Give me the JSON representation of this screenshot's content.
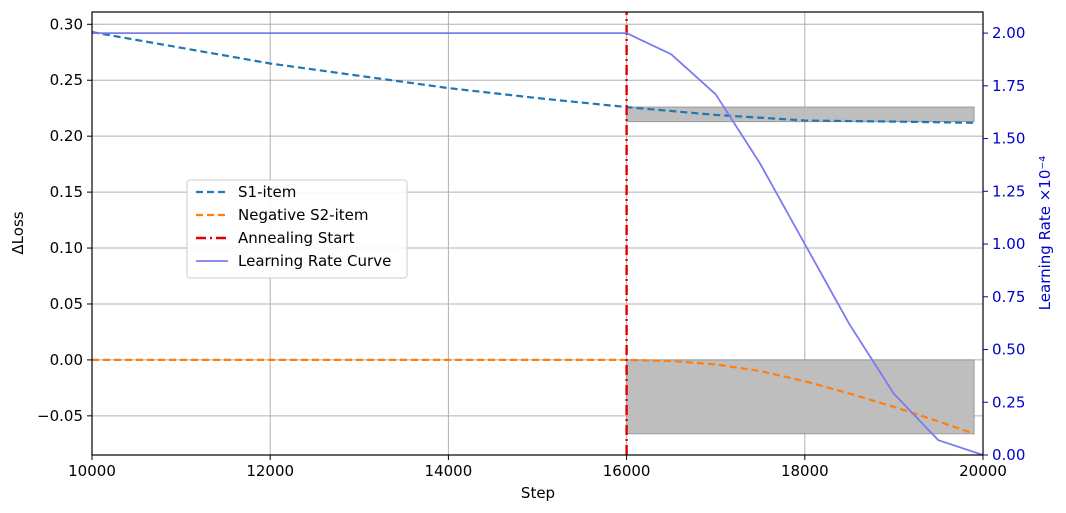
{
  "chart_data": {
    "type": "line",
    "xlabel": "Step",
    "ylabel": "ΔLoss",
    "y2label": "Learning Rate ×10⁻⁴",
    "xlim": [
      10000,
      20000
    ],
    "ylim": [
      -0.085,
      0.311
    ],
    "y2lim": [
      0,
      2.1
    ],
    "x_ticks": [
      10000,
      12000,
      14000,
      16000,
      18000,
      20000
    ],
    "y_ticks": [
      -0.05,
      0.0,
      0.05,
      0.1,
      0.15,
      0.2,
      0.25,
      0.3
    ],
    "y_tick_labels": [
      "−0.05",
      "0.00",
      "0.05",
      "0.10",
      "0.15",
      "0.20",
      "0.25",
      "0.30"
    ],
    "y2_ticks": [
      0.0,
      0.25,
      0.5,
      0.75,
      1.0,
      1.25,
      1.5,
      1.75,
      2.0
    ],
    "y2_tick_labels": [
      "0.00",
      "0.25",
      "0.50",
      "0.75",
      "1.00",
      "1.25",
      "1.50",
      "1.75",
      "2.00"
    ],
    "grid": true,
    "legend_position": "center-left",
    "series": [
      {
        "name": "S1-item",
        "axis": "left",
        "style": "dashed",
        "color": "#1f77b4",
        "x": [
          10000,
          11000,
          12000,
          13000,
          14000,
          15000,
          16000,
          17000,
          18000,
          19000,
          19900
        ],
        "y": [
          0.293,
          0.279,
          0.265,
          0.254,
          0.243,
          0.234,
          0.226,
          0.219,
          0.214,
          0.213,
          0.212
        ]
      },
      {
        "name": "Negative S2-item",
        "axis": "left",
        "style": "dashed",
        "color": "#ff7f0e",
        "x": [
          10000,
          12000,
          14000,
          16000,
          16500,
          17000,
          17500,
          18000,
          18500,
          19000,
          19500,
          19900
        ],
        "y": [
          0.0,
          0.0,
          0.0,
          0.0,
          -0.001,
          -0.004,
          -0.01,
          -0.019,
          -0.03,
          -0.042,
          -0.055,
          -0.066
        ]
      },
      {
        "name": "Annealing Start",
        "axis": "left",
        "style": "dashdot",
        "color": "#e00000",
        "x": [
          16000,
          16000
        ],
        "y": [
          -0.085,
          0.311
        ]
      },
      {
        "name": "Learning Rate Curve",
        "axis": "right",
        "style": "solid",
        "color": "#7b7bf0",
        "x": [
          10000,
          12000,
          14000,
          16000,
          16500,
          17000,
          17500,
          18000,
          18500,
          19000,
          19500,
          20000
        ],
        "y": [
          2.0,
          2.0,
          2.0,
          2.0,
          1.9,
          1.71,
          1.38,
          1.0,
          0.62,
          0.29,
          0.07,
          0.0
        ]
      }
    ],
    "shaded_regions": [
      {
        "x": [
          16000,
          19900
        ],
        "y": [
          0.213,
          0.226
        ],
        "color": "#bbbbbb"
      },
      {
        "x": [
          16000,
          19900
        ],
        "y": [
          -0.066,
          0.0
        ],
        "color": "#bbbbbb"
      }
    ],
    "colors": {
      "right_axis": "#0000cc",
      "grid": "#b0b0b0"
    }
  }
}
